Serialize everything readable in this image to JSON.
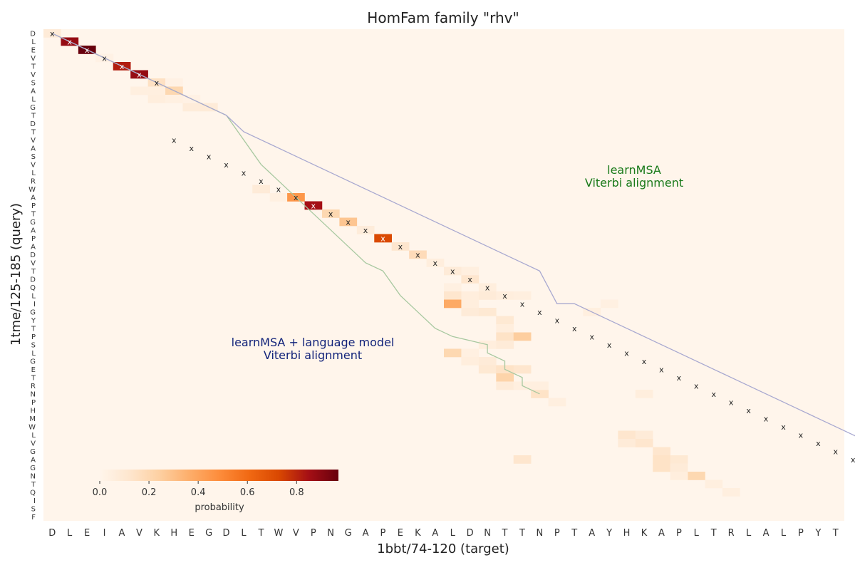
{
  "chart_data": {
    "type": "heatmap",
    "title": "HomFam family \"rhv\"",
    "xlabel": "1bbt/74-120 (target)",
    "ylabel": "1tme/125-185 (query)",
    "x_categories": [
      "D",
      "L",
      "E",
      "I",
      "A",
      "V",
      "K",
      "H",
      "E",
      "G",
      "D",
      "L",
      "T",
      "W",
      "V",
      "P",
      "N",
      "G",
      "A",
      "P",
      "E",
      "K",
      "A",
      "L",
      "D",
      "N",
      "T",
      "T",
      "N",
      "P",
      "T",
      "A",
      "Y",
      "H",
      "K",
      "A",
      "P",
      "L",
      "T",
      "R",
      "L",
      "A",
      "L",
      "P",
      "Y",
      "T"
    ],
    "y_categories": [
      "D",
      "L",
      "E",
      "V",
      "T",
      "V",
      "S",
      "A",
      "L",
      "G",
      "T",
      "D",
      "T",
      "V",
      "A",
      "S",
      "V",
      "L",
      "R",
      "W",
      "A",
      "P",
      "T",
      "G",
      "A",
      "P",
      "A",
      "D",
      "V",
      "T",
      "D",
      "Q",
      "L",
      "I",
      "G",
      "Y",
      "T",
      "P",
      "S",
      "L",
      "G",
      "E",
      "T",
      "R",
      "N",
      "P",
      "H",
      "M",
      "W",
      "L",
      "V",
      "G",
      "A",
      "G",
      "N",
      "T",
      "Q",
      "I",
      "S",
      "F"
    ],
    "colorbar": {
      "label": "probability",
      "range": [
        0,
        0.97
      ],
      "ticks": [
        "0.0",
        "0.2",
        "0.4",
        "0.6",
        "0.8"
      ],
      "colormap": [
        "#fff5eb",
        "#fee6ce",
        "#fdd0a2",
        "#fdae6b",
        "#fd8d3c",
        "#f16913",
        "#d94801",
        "#a50f15",
        "#67000d"
      ]
    },
    "cells": [
      [
        0,
        0,
        0.08
      ],
      [
        1,
        1,
        0.88
      ],
      [
        2,
        2,
        0.97
      ],
      [
        3,
        3,
        0.03
      ],
      [
        4,
        4,
        0.82
      ],
      [
        5,
        5,
        0.88
      ],
      [
        6,
        6,
        0.15
      ],
      [
        7,
        6,
        0.03
      ],
      [
        5,
        7,
        0.05
      ],
      [
        6,
        7,
        0.05
      ],
      [
        7,
        7,
        0.2
      ],
      [
        6,
        8,
        0.06
      ],
      [
        7,
        8,
        0.04
      ],
      [
        8,
        9,
        0.07
      ],
      [
        9,
        9,
        0.08
      ],
      [
        8,
        8,
        0.03
      ],
      [
        12,
        19,
        0.08
      ],
      [
        13,
        20,
        0.04
      ],
      [
        14,
        20,
        0.45
      ],
      [
        15,
        21,
        0.85
      ],
      [
        16,
        22,
        0.2
      ],
      [
        17,
        23,
        0.28
      ],
      [
        18,
        24,
        0.07
      ],
      [
        19,
        25,
        0.72
      ],
      [
        20,
        26,
        0.12
      ],
      [
        21,
        27,
        0.18
      ],
      [
        22,
        28,
        0.06
      ],
      [
        23,
        29,
        0.08
      ],
      [
        24,
        30,
        0.12
      ],
      [
        24,
        29,
        0.05
      ],
      [
        25,
        31,
        0.06
      ],
      [
        23,
        31,
        0.04
      ],
      [
        23,
        32,
        0.12
      ],
      [
        24,
        32,
        0.06
      ],
      [
        25,
        32,
        0.08
      ],
      [
        26,
        32,
        0.06
      ],
      [
        27,
        32,
        0.05
      ],
      [
        23,
        33,
        0.38
      ],
      [
        24,
        33,
        0.06
      ],
      [
        24,
        34,
        0.08
      ],
      [
        25,
        34,
        0.1
      ],
      [
        26,
        35,
        0.1
      ],
      [
        26,
        36,
        0.06
      ],
      [
        26,
        37,
        0.14
      ],
      [
        27,
        37,
        0.25
      ],
      [
        25,
        38,
        0.06
      ],
      [
        26,
        38,
        0.08
      ],
      [
        23,
        39,
        0.2
      ],
      [
        24,
        39,
        0.04
      ],
      [
        24,
        40,
        0.06
      ],
      [
        25,
        40,
        0.08
      ],
      [
        25,
        41,
        0.1
      ],
      [
        26,
        41,
        0.14
      ],
      [
        27,
        41,
        0.12
      ],
      [
        26,
        42,
        0.22
      ],
      [
        26,
        43,
        0.08
      ],
      [
        27,
        43,
        0.05
      ],
      [
        28,
        44,
        0.14
      ],
      [
        28,
        43,
        0.05
      ],
      [
        29,
        45,
        0.05
      ],
      [
        33,
        49,
        0.12
      ],
      [
        34,
        49,
        0.08
      ],
      [
        33,
        50,
        0.08
      ],
      [
        34,
        50,
        0.12
      ],
      [
        35,
        51,
        0.12
      ],
      [
        35,
        52,
        0.14
      ],
      [
        36,
        52,
        0.1
      ],
      [
        35,
        53,
        0.14
      ],
      [
        36,
        53,
        0.08
      ],
      [
        27,
        52,
        0.12
      ],
      [
        37,
        54,
        0.2
      ],
      [
        36,
        54,
        0.06
      ],
      [
        38,
        55,
        0.05
      ],
      [
        39,
        56,
        0.05
      ],
      [
        34,
        44,
        0.06
      ],
      [
        32,
        33,
        0.04
      ],
      [
        31,
        34,
        0.05
      ]
    ],
    "path_viterbi": [
      [
        0,
        0
      ],
      [
        1,
        1
      ],
      [
        2,
        2
      ],
      [
        3,
        3
      ],
      [
        4,
        4
      ],
      [
        5,
        5
      ],
      [
        6,
        6
      ],
      [
        7,
        7
      ],
      [
        8,
        8
      ],
      [
        9,
        9
      ],
      [
        10,
        10
      ],
      [
        16,
        12
      ],
      [
        18,
        13
      ],
      [
        20,
        14
      ],
      [
        22,
        15
      ],
      [
        24,
        16
      ],
      [
        26,
        17
      ],
      [
        28,
        18
      ],
      [
        29,
        19
      ],
      [
        32,
        20
      ],
      [
        34,
        21
      ],
      [
        36,
        22
      ],
      [
        37,
        23
      ],
      [
        38,
        25
      ],
      [
        39,
        25
      ],
      [
        40,
        26
      ],
      [
        41,
        26
      ],
      [
        42,
        27
      ],
      [
        43,
        27
      ],
      [
        44,
        28
      ]
    ],
    "path_lm": [
      [
        0,
        0
      ],
      [
        1,
        1
      ],
      [
        2,
        2
      ],
      [
        3,
        3
      ],
      [
        4,
        4
      ],
      [
        5,
        5
      ],
      [
        6,
        6
      ],
      [
        7,
        7
      ],
      [
        8,
        8
      ],
      [
        9,
        9
      ],
      [
        10,
        10
      ],
      [
        12,
        11
      ],
      [
        13,
        12
      ],
      [
        14,
        13
      ],
      [
        15,
        14
      ],
      [
        16,
        15
      ],
      [
        17,
        16
      ],
      [
        18,
        17
      ],
      [
        19,
        18
      ],
      [
        20,
        19
      ],
      [
        21,
        20
      ],
      [
        22,
        21
      ],
      [
        23,
        22
      ],
      [
        24,
        23
      ],
      [
        25,
        24
      ],
      [
        26,
        25
      ],
      [
        27,
        26
      ],
      [
        28,
        27
      ],
      [
        29,
        28
      ],
      [
        33,
        29
      ],
      [
        33,
        30
      ],
      [
        34,
        31
      ],
      [
        35,
        32
      ],
      [
        36,
        33
      ],
      [
        37,
        34
      ],
      [
        38,
        35
      ],
      [
        39,
        36
      ],
      [
        40,
        37
      ],
      [
        41,
        38
      ],
      [
        42,
        39
      ],
      [
        43,
        40
      ],
      [
        44,
        41
      ],
      [
        45,
        42
      ],
      [
        46,
        43
      ],
      [
        47,
        44
      ],
      [
        48,
        45
      ],
      [
        49,
        46
      ],
      [
        50,
        47
      ],
      [
        51,
        48
      ],
      [
        52,
        49
      ],
      [
        53,
        50
      ],
      [
        54,
        51
      ],
      [
        55,
        52
      ],
      [
        56,
        53
      ],
      [
        57,
        54
      ],
      [
        58,
        55
      ],
      [
        59,
        56
      ]
    ],
    "marks": [
      [
        0,
        0
      ],
      [
        1,
        1
      ],
      [
        2,
        2
      ],
      [
        3,
        3
      ],
      [
        4,
        4
      ],
      [
        5,
        5
      ],
      [
        6,
        6
      ],
      [
        13,
        7
      ],
      [
        14,
        8
      ],
      [
        15,
        9
      ],
      [
        16,
        10
      ],
      [
        17,
        11
      ],
      [
        18,
        12
      ],
      [
        19,
        13
      ],
      [
        20,
        14
      ],
      [
        21,
        15
      ],
      [
        22,
        16
      ],
      [
        23,
        17
      ],
      [
        24,
        18
      ],
      [
        25,
        19
      ],
      [
        26,
        20
      ],
      [
        27,
        21
      ],
      [
        28,
        22
      ],
      [
        29,
        23
      ],
      [
        30,
        24
      ],
      [
        31,
        25
      ],
      [
        32,
        26
      ],
      [
        33,
        27
      ],
      [
        34,
        28
      ],
      [
        35,
        29
      ],
      [
        36,
        30
      ],
      [
        37,
        31
      ],
      [
        38,
        32
      ],
      [
        39,
        33
      ],
      [
        40,
        34
      ],
      [
        41,
        35
      ],
      [
        42,
        36
      ],
      [
        43,
        37
      ],
      [
        44,
        38
      ],
      [
        45,
        39
      ],
      [
        46,
        40
      ],
      [
        47,
        41
      ],
      [
        48,
        42
      ],
      [
        49,
        43
      ],
      [
        50,
        44
      ],
      [
        51,
        45
      ],
      [
        52,
        46
      ],
      [
        53,
        47
      ],
      [
        54,
        48
      ],
      [
        55,
        49
      ],
      [
        56,
        50
      ],
      [
        57,
        51
      ],
      [
        58,
        52
      ],
      [
        59,
        53
      ]
    ],
    "annotations": [
      {
        "text_lines": [
          "learnMSA",
          "Viterbi alignment"
        ],
        "color": "#1a7a1a"
      },
      {
        "text_lines": [
          "learnMSA + language model",
          "Viterbi alignment"
        ],
        "color": "#12237a"
      }
    ],
    "mark_symbol": "x",
    "viterbi_line_color": "#a8c8a0",
    "lm_line_color": "#a8a8d0"
  }
}
